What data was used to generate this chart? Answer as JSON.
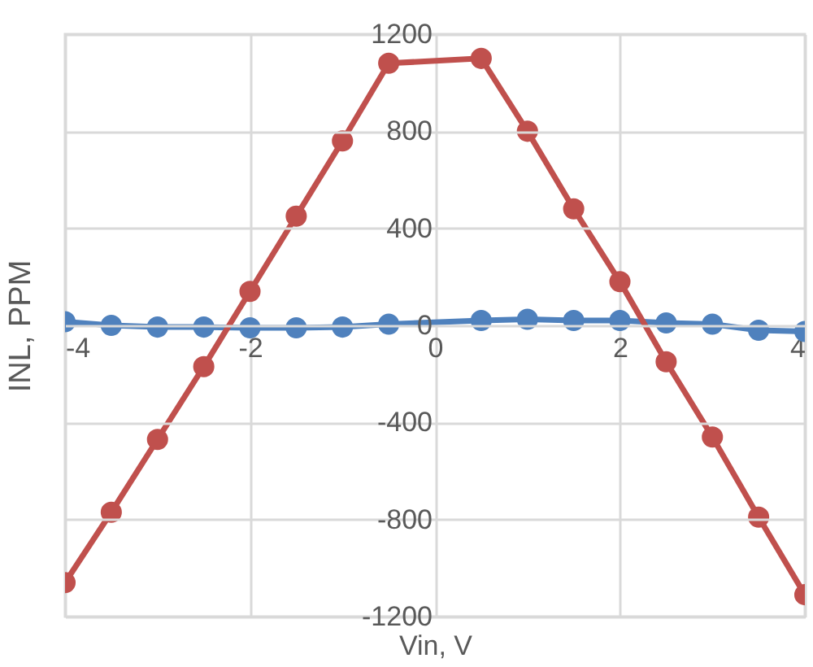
{
  "chart_data": {
    "type": "line",
    "xlabel": "Vin, V",
    "ylabel": "INL, PPM",
    "x": [
      -4,
      -3.5,
      -3,
      -2.5,
      -2,
      -1.5,
      -1,
      -0.5,
      0.5,
      1,
      1.5,
      2,
      2.5,
      3,
      3.5,
      4
    ],
    "series": [
      {
        "color": "#4f81bd",
        "values": [
          15,
          0,
          -7,
          -7,
          -10,
          -10,
          -7,
          5,
          20,
          25,
          20,
          20,
          10,
          5,
          -20,
          -25
        ]
      },
      {
        "color": "#c0504d",
        "values": [
          -1060,
          -770,
          -470,
          -170,
          140,
          450,
          760,
          1080,
          1100,
          800,
          480,
          180,
          -150,
          -460,
          -790,
          -1110
        ]
      }
    ],
    "xlim": [
      -4,
      4
    ],
    "xticks": [
      -4,
      -2,
      0,
      2,
      4
    ],
    "ylim": [
      -1200,
      1200
    ],
    "yticks": [
      -1200,
      -800,
      -400,
      0,
      400,
      800,
      1200
    ],
    "grid": true,
    "marker": "circle",
    "line_style": "solid"
  }
}
